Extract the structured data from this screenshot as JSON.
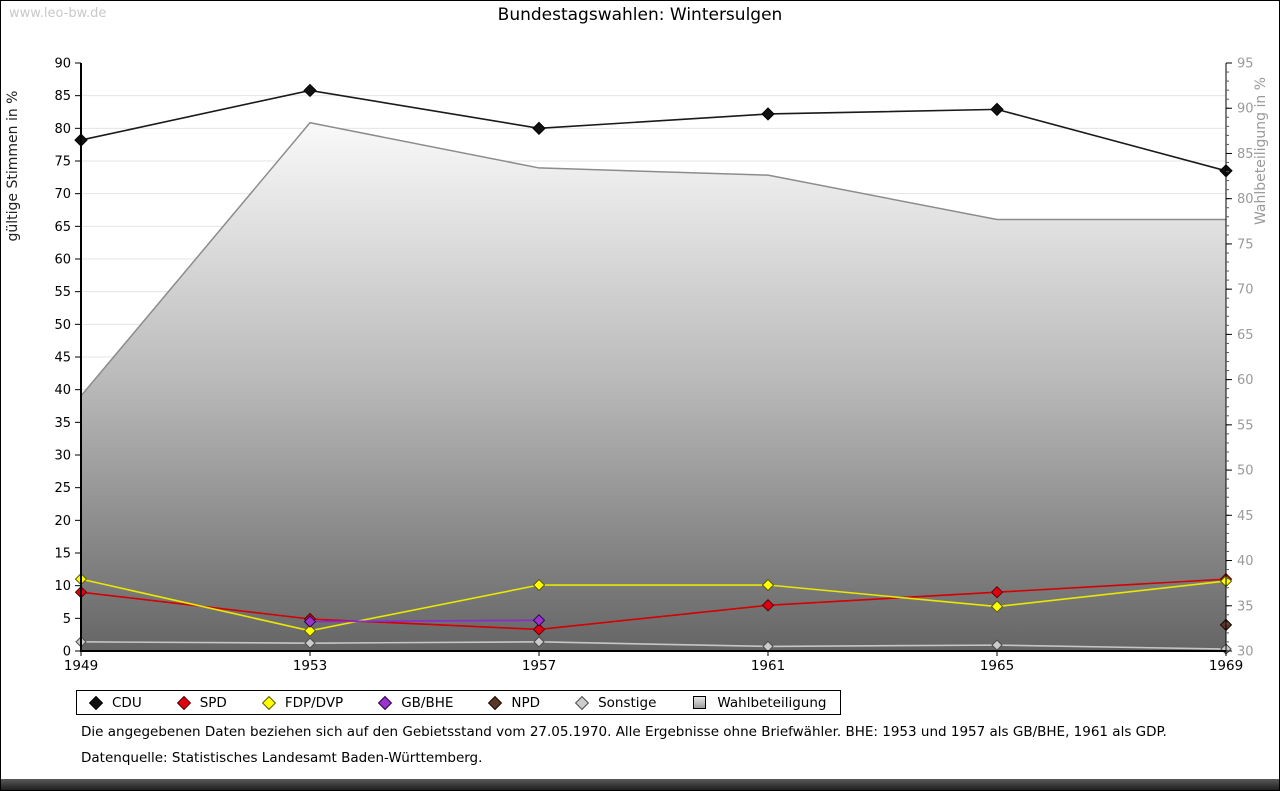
{
  "page": {
    "watermark": "www.leo-bw.de",
    "title": "Bundestagswahlen: Wintersulgen",
    "footnote1": "Die angegebenen Daten beziehen sich auf den Gebietsstand vom 27.05.1970. Alle Ergebnisse ohne Briefwähler. BHE: 1953 und 1957 als GB/BHE, 1961 als GDP.",
    "footnote2": "Datenquelle: Statistisches Landesamt Baden-Württemberg."
  },
  "chart_data": {
    "type": "line",
    "title": "Bundestagswahlen: Wintersulgen",
    "categories": [
      "1949",
      "1953",
      "1957",
      "1961",
      "1965",
      "1969"
    ],
    "left_axis": {
      "label": "gültige Stimmen in %",
      "min": 0,
      "max": 90,
      "step": 5
    },
    "right_axis": {
      "label": "Wahlbeteiligung in %",
      "min": 30,
      "max": 95,
      "step": 5,
      "minor_step": 1
    },
    "grid": "horizontal",
    "legend_position": "bottom",
    "area_gradient": [
      "#fbfbfb",
      "#b9b9b9",
      "#656565"
    ],
    "series": [
      {
        "name": "CDU",
        "axis": "left",
        "marker": "diamond",
        "draw_order": 6,
        "color": "#1a1a1a",
        "marker_fill": "#111111",
        "marker_stroke": "#000000",
        "marker_size": 6,
        "values": [
          78.2,
          85.8,
          80.0,
          82.2,
          82.9,
          73.5
        ]
      },
      {
        "name": "SPD",
        "axis": "left",
        "marker": "diamond",
        "draw_order": 2,
        "color": "#d40000",
        "marker_fill": "#e00012",
        "marker_stroke": "#5a0000",
        "marker_size": 5.5,
        "values": [
          9.0,
          4.9,
          3.3,
          7.0,
          9.0,
          11.0
        ]
      },
      {
        "name": "FDP/DVP",
        "axis": "left",
        "marker": "diamond",
        "draw_order": 3,
        "color": "#e8e800",
        "marker_fill": "#ffff00",
        "marker_stroke": "#5a5a00",
        "marker_size": 5.5,
        "values": [
          11.0,
          3.1,
          10.1,
          10.1,
          6.8,
          10.7
        ]
      },
      {
        "name": "GB/BHE",
        "axis": "left",
        "marker": "diamond",
        "draw_order": 4,
        "color": "#8a2bd0",
        "marker_fill": "#9933cc",
        "marker_stroke": "#2e004d",
        "marker_size": 5.5,
        "values": [
          null,
          4.5,
          4.7,
          null,
          null,
          null
        ]
      },
      {
        "name": "NPD",
        "axis": "left",
        "marker": "diamond",
        "draw_order": 5,
        "color": "#553322",
        "marker_fill": "#5e3626",
        "marker_stroke": "#170b06",
        "marker_size": 5.5,
        "values": [
          null,
          null,
          null,
          null,
          null,
          4.0
        ]
      },
      {
        "name": "Sonstige",
        "axis": "left",
        "marker": "diamond",
        "draw_order": 1,
        "color": "#c6c6c6",
        "marker_fill": "#cccccc",
        "marker_stroke": "#4d4d4d",
        "marker_size": 5,
        "values": [
          1.4,
          1.2,
          1.4,
          0.7,
          0.9,
          0.3
        ]
      },
      {
        "name": "Wahlbeteiligung",
        "axis": "right",
        "type": "area",
        "marker": "square",
        "draw_order": 0,
        "color": "#8c8c8c",
        "values": [
          58.2,
          88.4,
          83.4,
          82.6,
          77.7,
          77.7
        ]
      }
    ]
  }
}
